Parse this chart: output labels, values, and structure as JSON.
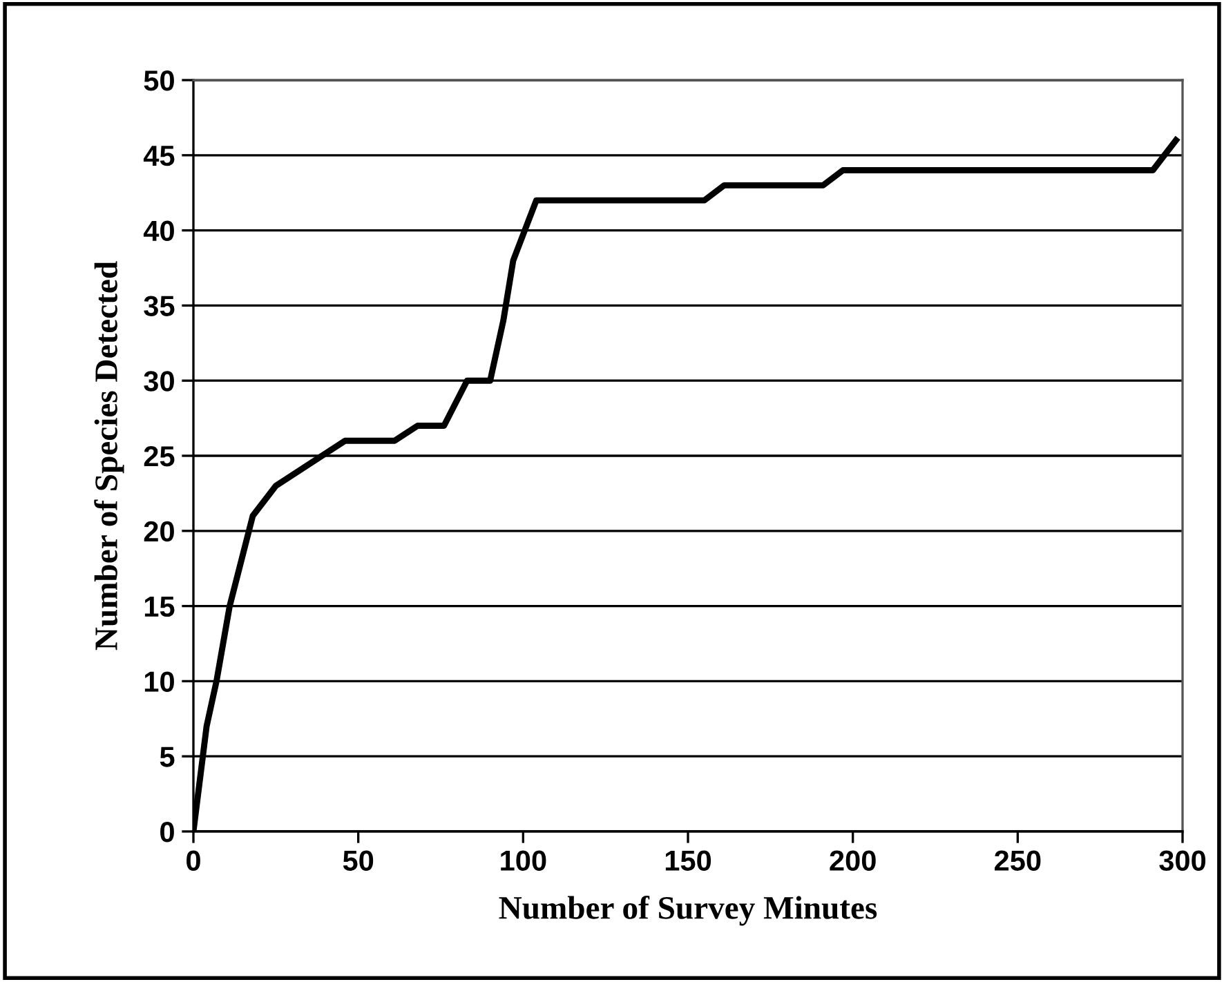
{
  "chart_data": {
    "type": "line",
    "xlabel": "Number of Survey Minutes",
    "ylabel": "Number of Species Detected",
    "x": [
      0,
      4,
      7,
      11,
      18,
      25,
      32,
      39,
      46,
      61,
      68,
      76,
      83,
      90,
      94,
      97,
      104,
      155,
      161,
      191,
      197,
      291,
      298
    ],
    "series": [
      {
        "color": "#000000",
        "values": [
          0,
          7,
          10,
          15,
          21,
          23,
          24,
          25,
          26,
          26,
          27,
          27,
          30,
          30,
          34,
          38,
          42,
          42,
          43,
          43,
          44,
          44,
          46
        ]
      }
    ],
    "xlim": [
      0,
      300
    ],
    "xticks": [
      0,
      50,
      100,
      150,
      200,
      250,
      300
    ],
    "ylim": [
      0,
      50
    ],
    "yticks": [
      0,
      5,
      10,
      15,
      20,
      25,
      30,
      35,
      40,
      45,
      50
    ],
    "grid": "y",
    "legend": false,
    "marker": "none",
    "line_style": "solid"
  }
}
